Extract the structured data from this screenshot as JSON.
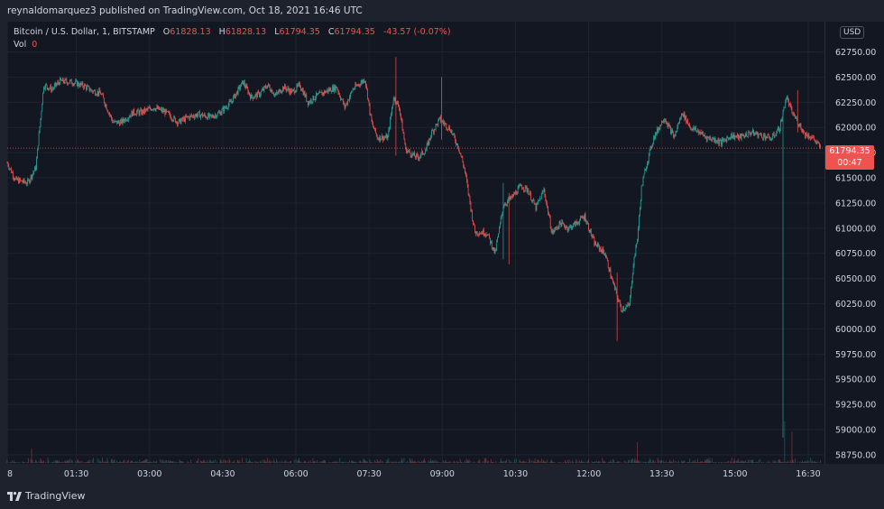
{
  "header": {
    "published_text": "reynaldomarquez3 published on TradingView.com, Oct 18, 2021 16:46 UTC"
  },
  "legend": {
    "symbol": "Bitcoin / U.S. Dollar, 1, BITSTAMP",
    "open_label": "O",
    "open": "61828.13",
    "high_label": "H",
    "high": "61828.13",
    "low_label": "L",
    "low": "61794.35",
    "close_label": "C",
    "close": "61794.35",
    "change": "-43.57 (-0.07%)",
    "vol_label": "Vol",
    "vol_value": "0"
  },
  "axis": {
    "currency": "USD"
  },
  "price_badge": {
    "price": "61794.35",
    "countdown": "00:47"
  },
  "footer": {
    "brand": "TradingView"
  },
  "colors": {
    "up": "#26a69a",
    "down": "#ef5350",
    "background": "#131722",
    "grid": "#1f2330"
  },
  "chart_data": {
    "type": "candlestick",
    "title": "Bitcoin / U.S. Dollar, 1, BITSTAMP",
    "y_ticks": [
      62750,
      62500,
      62250,
      62000,
      61750,
      61500,
      61250,
      61000,
      60750,
      60500,
      60250,
      60000,
      59750,
      59500,
      59250,
      59000,
      58750
    ],
    "y_tick_labels": [
      "62750.00",
      "62500.00",
      "62250.00",
      "62000.00",
      "61750.00",
      "61500.00",
      "61250.00",
      "61000.00",
      "60750.00",
      "60500.00",
      "60250.00",
      "60000.00",
      "59750.00",
      "59500.00",
      "59250.00",
      "59000.00",
      "58750.00"
    ],
    "ylim": [
      58660,
      63050
    ],
    "x_ticks": [
      "8",
      "01:30",
      "03:00",
      "04:30",
      "06:00",
      "07:30",
      "09:00",
      "10:30",
      "12:00",
      "13:30",
      "15:00",
      "16:30"
    ],
    "x_range_minutes": [
      0,
      1005
    ],
    "x_tick_minutes": [
      0,
      85,
      175,
      265,
      355,
      445,
      535,
      625,
      715,
      805,
      895,
      985
    ],
    "last_price": 61794.35,
    "series": [
      {
        "name": "Bitcoin / U.S. Dollar",
        "path_minutes": [
          0,
          10,
          25,
          35,
          45,
          55,
          65,
          80,
          95,
          105,
          115,
          130,
          140,
          155,
          165,
          180,
          195,
          210,
          222,
          235,
          250,
          262,
          275,
          290,
          300,
          310,
          320,
          330,
          340,
          350,
          360,
          370,
          380,
          395,
          405,
          415,
          425,
          440,
          448,
          455,
          468,
          475,
          482,
          490,
          500,
          505,
          515,
          522,
          532,
          545,
          555,
          562,
          575,
          585,
          590,
          600,
          610,
          620,
          632,
          640,
          650,
          660,
          670,
          680,
          690,
          700,
          710,
          722,
          735,
          745,
          755,
          765,
          770,
          775,
          780,
          785,
          795,
          808,
          820,
          830,
          840,
          852,
          860,
          870,
          878,
          890,
          900,
          915,
          928,
          940,
          950,
          958,
          965,
          975,
          980,
          990,
          995,
          1000
        ],
        "path_prices": [
          61650,
          61480,
          61450,
          61600,
          62420,
          62380,
          62460,
          62450,
          62410,
          62360,
          62340,
          62050,
          62050,
          62150,
          62150,
          62200,
          62150,
          62050,
          62100,
          62130,
          62100,
          62150,
          62250,
          62450,
          62300,
          62330,
          62420,
          62320,
          62400,
          62350,
          62420,
          62250,
          62310,
          62370,
          62400,
          62200,
          62380,
          62480,
          62050,
          61900,
          61900,
          62300,
          62200,
          61780,
          61720,
          61700,
          61780,
          61950,
          62080,
          61980,
          61800,
          61600,
          60960,
          60960,
          60950,
          60750,
          61230,
          61300,
          61420,
          61380,
          61200,
          61380,
          60950,
          61050,
          61000,
          61050,
          61120,
          60850,
          60750,
          60450,
          60200,
          60230,
          60650,
          60900,
          61400,
          61600,
          61900,
          62100,
          61900,
          62150,
          62000,
          61950,
          61900,
          61880,
          61850,
          61920,
          61900,
          61950,
          61920,
          61890,
          62000,
          62300,
          62150,
          62020,
          61940,
          61900,
          61850,
          61800
        ],
        "wicks": [
          {
            "minute": 478,
            "high": 62700,
            "low": 61720
          },
          {
            "minute": 534,
            "high": 62500,
            "low": 61880
          },
          {
            "minute": 610,
            "high": 61450,
            "low": 60690
          },
          {
            "minute": 617,
            "high": 61350,
            "low": 60640
          },
          {
            "minute": 750,
            "high": 60560,
            "low": 59880
          },
          {
            "minute": 954,
            "high": 61860,
            "low": 58920
          },
          {
            "minute": 972,
            "high": 62370,
            "low": 61950
          }
        ]
      }
    ],
    "volume": {
      "max": 100,
      "spikes": [
        {
          "minute": 956,
          "value": 100
        },
        {
          "minute": 965,
          "value": 75
        },
        {
          "minute": 775,
          "value": 50
        },
        {
          "minute": 30,
          "value": 35
        }
      ]
    }
  }
}
